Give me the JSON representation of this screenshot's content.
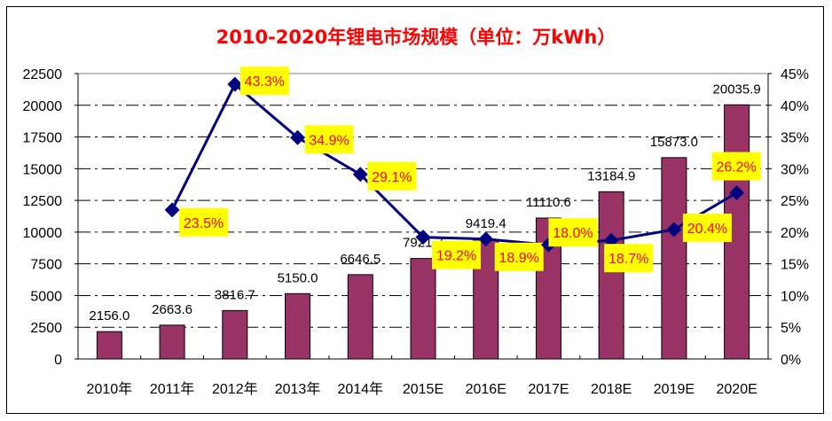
{
  "chart_data": {
    "type": "bar+line",
    "title": "2010-2020年锂电市场规模（单位：万kWh）",
    "categories": [
      "2010年",
      "2011年",
      "2012年",
      "2013年",
      "2014年",
      "2015E",
      "2016E",
      "2017E",
      "2018E",
      "2019E",
      "2020E"
    ],
    "series": [
      {
        "type": "bar",
        "axis": "left",
        "color": "#993366",
        "values": [
          2156.0,
          2663.6,
          3816.7,
          5150.0,
          6646.5,
          7921.7,
          9419.4,
          11110.6,
          13184.9,
          15873.0,
          20035.9
        ],
        "labels": [
          "2156.0",
          "2663.6",
          "3816.7",
          "5150.0",
          "6646.5",
          "7921.7",
          "9419.4",
          "11110.6",
          "13184.9",
          "15873.0",
          "20035.9"
        ]
      },
      {
        "type": "line",
        "axis": "right",
        "color": "#000080",
        "values": [
          null,
          23.5,
          43.3,
          34.9,
          29.1,
          19.2,
          18.9,
          18.0,
          18.7,
          20.4,
          26.2
        ],
        "labels": [
          "",
          "23.5%",
          "43.3%",
          "34.9%",
          "29.1%",
          "19.2%",
          "18.9%",
          "18.0%",
          "18.7%",
          "20.4%",
          "26.2%"
        ],
        "label_color": "#ff0000",
        "label_bg": "#ffff00"
      }
    ],
    "left_axis": {
      "ylim": [
        0,
        22500
      ],
      "ticks": [
        "0",
        "2500",
        "5000",
        "7500",
        "10000",
        "12500",
        "15000",
        "17500",
        "20000",
        "22500"
      ]
    },
    "right_axis": {
      "ylim": [
        0,
        45
      ],
      "ticks": [
        "0%",
        "5%",
        "10%",
        "15%",
        "20%",
        "25%",
        "30%",
        "35%",
        "40%",
        "45%"
      ]
    },
    "grid": "dash-dot horizontal",
    "legend": "none"
  }
}
